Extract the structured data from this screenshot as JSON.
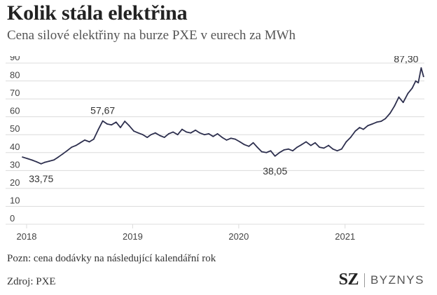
{
  "header": {
    "title": "Kolik stála elektřina",
    "subtitle": "Cena silové elektřiny na burze PXE v eurech za MWh"
  },
  "footer": {
    "note": "Pozn: cena dodávky na následující kalendářní rok",
    "source": "Zdroj: PXE",
    "brand_mark": "SZ",
    "brand_name": "BYZNYS"
  },
  "colors": {
    "line": "#2d2f4e",
    "grid": "#dcdcdc",
    "tick_text": "#444444",
    "label_text": "#333333"
  },
  "chart_data": {
    "type": "line",
    "title": "Kolik stála elektřina",
    "subtitle": "Cena silové elektřiny na burze PXE v eurech za MWh",
    "xlabel": "",
    "ylabel": "",
    "ylim": [
      0,
      90
    ],
    "xlim": [
      "2018-01-01",
      "2021-10-01"
    ],
    "yticks": [
      0,
      10,
      20,
      30,
      40,
      50,
      60,
      70,
      80,
      90
    ],
    "xticks": [
      "2018-01-01",
      "2019-01-01",
      "2020-01-01",
      "2021-01-01"
    ],
    "xtick_labels": [
      "2018",
      "2019",
      "2020",
      "2021"
    ],
    "grid": true,
    "legend": "none",
    "series": [
      {
        "name": "",
        "x": [
          "2017-12-18",
          "2018-01-05",
          "2018-01-20",
          "2018-02-05",
          "2018-02-20",
          "2018-03-05",
          "2018-03-20",
          "2018-04-05",
          "2018-04-20",
          "2018-05-05",
          "2018-05-20",
          "2018-06-05",
          "2018-06-20",
          "2018-07-05",
          "2018-07-20",
          "2018-08-05",
          "2018-08-20",
          "2018-09-05",
          "2018-09-20",
          "2018-10-05",
          "2018-10-20",
          "2018-11-05",
          "2018-11-20",
          "2018-12-05",
          "2018-12-20",
          "2019-01-05",
          "2019-01-20",
          "2019-02-05",
          "2019-02-20",
          "2019-03-05",
          "2019-03-20",
          "2019-04-05",
          "2019-04-20",
          "2019-05-05",
          "2019-05-20",
          "2019-06-05",
          "2019-06-20",
          "2019-07-05",
          "2019-07-20",
          "2019-08-05",
          "2019-08-20",
          "2019-09-05",
          "2019-09-20",
          "2019-10-05",
          "2019-10-20",
          "2019-11-05",
          "2019-11-20",
          "2019-12-05",
          "2019-12-20",
          "2020-01-05",
          "2020-01-20",
          "2020-02-05",
          "2020-02-20",
          "2020-03-05",
          "2020-03-20",
          "2020-04-05",
          "2020-04-20",
          "2020-05-05",
          "2020-05-20",
          "2020-06-05",
          "2020-06-20",
          "2020-07-05",
          "2020-07-20",
          "2020-08-05",
          "2020-08-20",
          "2020-09-05",
          "2020-09-20",
          "2020-10-05",
          "2020-10-20",
          "2020-11-05",
          "2020-11-20",
          "2020-12-05",
          "2020-12-20",
          "2021-01-05",
          "2021-01-20",
          "2021-02-05",
          "2021-02-20",
          "2021-03-05",
          "2021-03-20",
          "2021-04-05",
          "2021-04-20",
          "2021-05-05",
          "2021-05-20",
          "2021-06-05",
          "2021-06-20",
          "2021-07-05",
          "2021-07-20",
          "2021-08-05",
          "2021-08-20",
          "2021-09-01",
          "2021-09-10",
          "2021-09-20",
          "2021-09-28"
        ],
        "values": [
          37.5,
          36.6,
          35.8,
          34.8,
          33.75,
          34.6,
          35.2,
          35.9,
          37.5,
          39.2,
          41.0,
          43.0,
          44.0,
          45.5,
          47.0,
          46.0,
          47.5,
          53.0,
          57.67,
          56.0,
          55.5,
          57.0,
          54.0,
          57.5,
          55.0,
          52.0,
          51.0,
          50.0,
          48.5,
          50.0,
          51.0,
          49.5,
          48.5,
          50.5,
          51.5,
          50.0,
          53.0,
          51.5,
          51.0,
          52.5,
          51.0,
          50.0,
          50.5,
          49.0,
          50.5,
          48.5,
          47.0,
          48.0,
          47.5,
          46.0,
          44.5,
          43.5,
          45.5,
          43.0,
          40.5,
          40.0,
          41.0,
          38.05,
          40.0,
          41.5,
          42.0,
          41.0,
          43.0,
          44.5,
          46.0,
          44.0,
          45.5,
          43.0,
          42.5,
          44.0,
          42.0,
          41.0,
          42.0,
          46.0,
          48.5,
          52.0,
          54.0,
          53.0,
          55.0,
          56.0,
          57.0,
          57.5,
          59.0,
          62.0,
          66.0,
          71.0,
          68.0,
          73.0,
          76.0,
          80.0,
          79.0,
          87.3,
          82.5
        ]
      }
    ],
    "annotations": [
      {
        "label": "33,75",
        "x": "2018-02-20",
        "y": 33.75,
        "position": "below"
      },
      {
        "label": "57,67",
        "x": "2018-09-20",
        "y": 57.67,
        "position": "above"
      },
      {
        "label": "38,05",
        "x": "2020-05-05",
        "y": 38.05,
        "position": "below"
      },
      {
        "label": "87,30",
        "x": "2021-09-20",
        "y": 87.3,
        "position": "above-left"
      }
    ]
  }
}
